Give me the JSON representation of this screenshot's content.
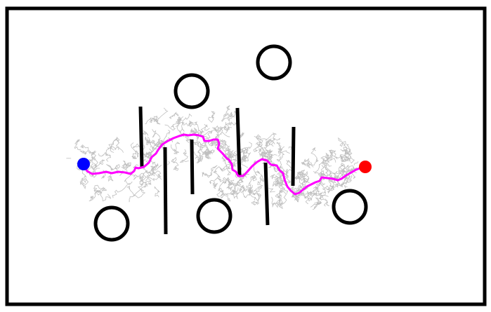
{
  "colors": {
    "background": "#ffffff",
    "boundary": "#000000",
    "obstacle": "#000000",
    "tree": "#bfbfbf",
    "path": "#ff00ff",
    "start": "#0000ff",
    "goal": "#ff0000"
  },
  "start_marker": "blue-dot",
  "goal_marker": "red-dot"
}
